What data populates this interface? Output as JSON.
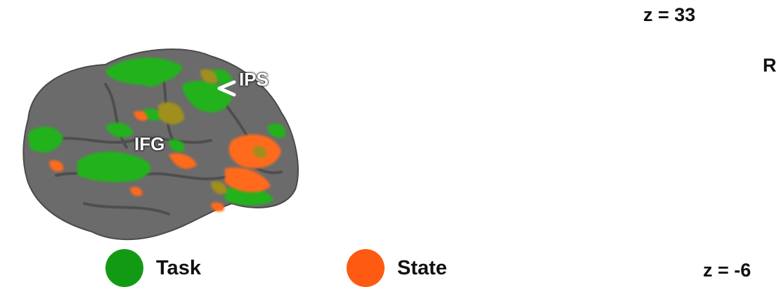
{
  "figure": {
    "slice_labels": {
      "top": "z = 33",
      "bottom": "z = -6"
    },
    "orientation_label": "R",
    "roi_labels": {
      "ips": "IPS",
      "ifg": "IFG"
    },
    "legend": [
      {
        "label": "Task",
        "color": "#139a14"
      },
      {
        "label": "State",
        "color": "#ff5a12"
      }
    ],
    "colors": {
      "cortex": "#6b6b6b",
      "cortex_dark": "#505050",
      "task": "#24b21c",
      "state": "#ff6a1a",
      "overlap": "#9a8a1a",
      "slice_bg": "#d9d9d9"
    }
  }
}
